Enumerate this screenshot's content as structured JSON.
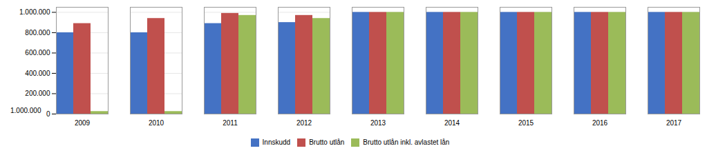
{
  "chart_data": {
    "type": "bar",
    "categories": [
      "2009",
      "2010",
      "2011",
      "2012",
      "2013",
      "2014",
      "2015",
      "2016",
      "2017"
    ],
    "series": [
      {
        "name": "Innskudd",
        "color": "#4472C4",
        "values": [
          800000,
          800000,
          890000,
          900000,
          1000000,
          1000000,
          1000000,
          1000000,
          1000000
        ]
      },
      {
        "name": "Brutto utlån",
        "color": "#C0504D",
        "values": [
          890000,
          940000,
          990000,
          970000,
          1000000,
          1000000,
          1000000,
          1000000,
          1000000
        ]
      },
      {
        "name": "Brutto utlån inkl. avlastet lån",
        "color": "#9BBB59",
        "values": [
          25000,
          25000,
          970000,
          940000,
          1000000,
          1000000,
          1000000,
          1000000,
          1000000
        ]
      }
    ],
    "ylim": [
      0,
      1050000
    ],
    "yticks": [
      0,
      {
        "value": 200000,
        "label": "200.000"
      },
      {
        "value": 400000,
        "label": "400.000"
      },
      {
        "value": 600000,
        "label": "600.000"
      },
      {
        "value": 800000,
        "label": "800.000"
      },
      {
        "value": 1000000,
        "label": "1.000.000"
      }
    ],
    "grid": true,
    "legend": "bottom",
    "annotations": [
      {
        "text": "1.000.000",
        "y": 1.000001
      }
    ]
  }
}
